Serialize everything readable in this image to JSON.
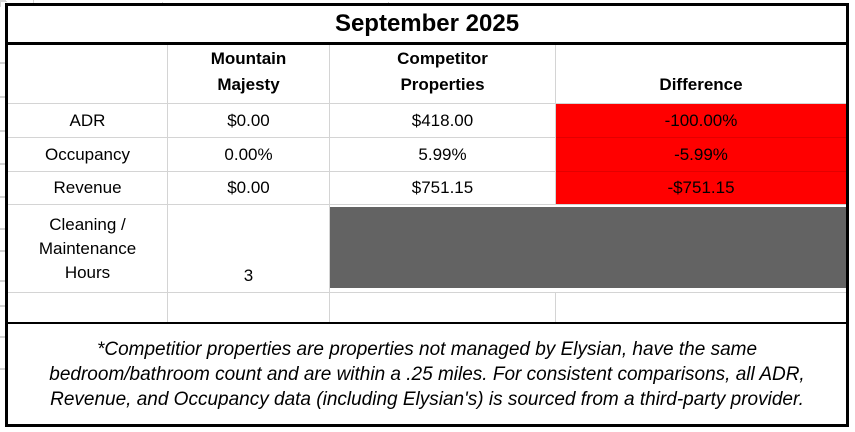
{
  "title": "September 2025",
  "header": {
    "row_label": "",
    "mountain_majesty": "Mountain Majesty",
    "competitor_properties": "Competitor Properties",
    "difference": "Difference"
  },
  "rows": [
    {
      "label": "ADR",
      "mountain_majesty": "$0.00",
      "competitor_properties": "$418.00",
      "difference": "-100.00%"
    },
    {
      "label": "Occupancy",
      "mountain_majesty": "0.00%",
      "competitor_properties": "5.99%",
      "difference": "-5.99%"
    },
    {
      "label": "Revenue",
      "mountain_majesty": "$0.00",
      "competitor_properties": "$751.15",
      "difference": "-$751.15"
    }
  ],
  "cleaning_row": {
    "label": "Cleaning / Maintenance Hours",
    "mountain_majesty": "3",
    "competitor_properties": "",
    "difference": ""
  },
  "footnote": "*Competitior properties are properties not managed by Elysian, have the same bedroom/bathroom count and are within a .25 miles. For consistent comparisons, all ADR, Revenue, and Occupancy data (including Elysian's) is sourced from a third-party provider.",
  "colors": {
    "negative_highlight": "#ff0000",
    "blocked_cell_gray": "#636363",
    "gridline": "#d4d4d4",
    "table_border": "#000000"
  }
}
